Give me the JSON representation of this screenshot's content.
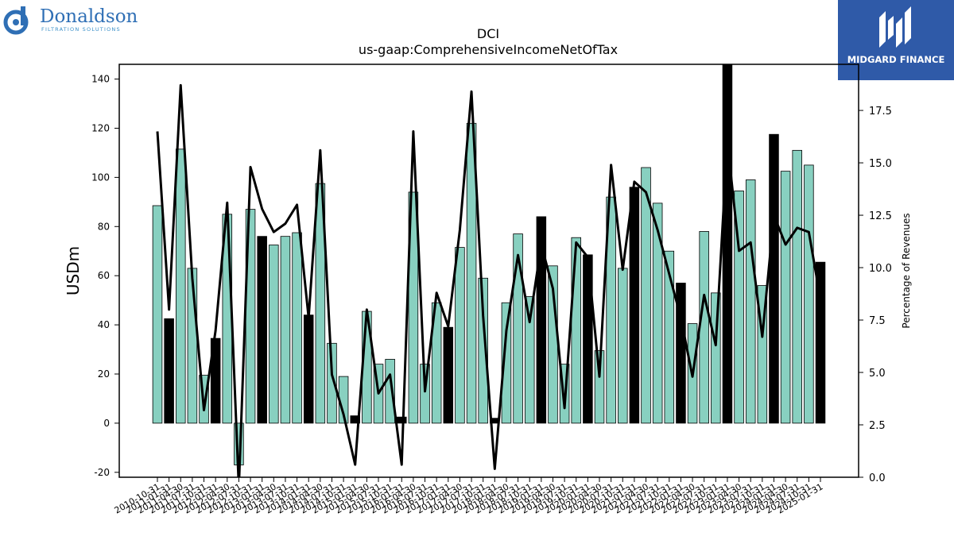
{
  "logos": {
    "left_brand": "Donaldson",
    "left_sub": "FILTRATION SOLUTIONS",
    "right_brand": "MIDGARD FINANCE"
  },
  "chart_data": {
    "type": "bar",
    "title": "DCI",
    "subtitle": "us-gaap:ComprehensiveIncomeNetOfTax",
    "ylabel": "USDm",
    "y2label": "Percentage of Revenues",
    "ylim": [
      -22,
      146
    ],
    "y2lim": [
      0,
      19.7
    ],
    "yticks": [
      -20,
      0,
      20,
      40,
      60,
      80,
      100,
      120,
      140
    ],
    "y2ticks": [
      "0.0",
      "2.5",
      "5.0",
      "7.5",
      "10.0",
      "12.5",
      "15.0",
      "17.5"
    ],
    "categories": [
      "2010-10-31",
      "2011-01-31",
      "2011-04-30",
      "2011-07-31",
      "2011-10-31",
      "2012-01-31",
      "2012-04-30",
      "2012-07-31",
      "2012-10-31",
      "2013-01-31",
      "2013-04-30",
      "2013-07-31",
      "2013-10-31",
      "2014-01-31",
      "2014-04-30",
      "2014-07-31",
      "2014-10-31",
      "2015-01-31",
      "2015-04-30",
      "2015-07-31",
      "2015-10-31",
      "2016-01-31",
      "2016-04-30",
      "2016-07-31",
      "2016-10-31",
      "2017-01-31",
      "2017-04-30",
      "2017-07-31",
      "2017-10-31",
      "2018-01-31",
      "2018-04-30",
      "2018-07-31",
      "2018-10-31",
      "2019-01-31",
      "2019-04-30",
      "2019-07-31",
      "2019-10-31",
      "2020-01-31",
      "2020-04-30",
      "2020-07-31",
      "2020-10-31",
      "2021-01-31",
      "2021-04-30",
      "2021-07-31",
      "2021-10-31",
      "2022-01-31",
      "2022-04-30",
      "2022-07-31",
      "2022-10-31",
      "2023-01-31",
      "2023-04-30",
      "2023-07-31",
      "2023-10-31",
      "2024-01-31",
      "2024-04-30",
      "2024-07-31",
      "2024-10-31",
      "2025-01-31"
    ],
    "xtick_labels": [
      "2010-10-31",
      "2011-01-31",
      "2011-04-30",
      "2011-07-31",
      "2011-10-31",
      "2012-01-31",
      "2012-04-30",
      "2012-07-31",
      "2012-10-31",
      "2013-01-31",
      "2013-04-30",
      "2013-07-31",
      "2013-10-31",
      "2014-01-31",
      "2014-04-30",
      "2014-07-31",
      "2014-10-31",
      "2015-01-31",
      "2015-04-30",
      "2015-07-31",
      "2015-10-31",
      "2016-01-31",
      "2016-04-30",
      "2016-07-31",
      "2016-10-31",
      "2017-01-31",
      "2017-04-30",
      "2017-07-31",
      "2017-10-31",
      "2018-01-31",
      "2018-04-30",
      "2018-07-31",
      "2018-10-31",
      "2019-01-31",
      "2019-04-30",
      "2019-07-31",
      "2019-10-31",
      "2020-01-31",
      "2020-04-30",
      "2020-07-31",
      "2020-10-31",
      "2021-01-31",
      "2021-04-30",
      "2021-07-31",
      "2021-10-31",
      "2022-01-31",
      "2022-04-30",
      "2022-07-31",
      "2022-10-31",
      "2023-01-31",
      "2023-04-30",
      "2023-07-31",
      "2023-10-31",
      "2024-01-31",
      "2024-04-30",
      "2024-07-31",
      "2024-10-31",
      "2025-01-31"
    ],
    "series": [
      {
        "values": [
          88.5,
          42.5,
          111.5,
          63,
          19.5,
          34.5,
          85,
          -17,
          87,
          76,
          72.5,
          76,
          77.5,
          44,
          97.5,
          32.5,
          19,
          3,
          45.5,
          24,
          26,
          2.5,
          94,
          24,
          49,
          39,
          71.5,
          122,
          59,
          2,
          49,
          77,
          51.5,
          84,
          64,
          24,
          75.5,
          68.5,
          29.5,
          92,
          63,
          96,
          104,
          89.5,
          70,
          57,
          40.5,
          78,
          53,
          146,
          94.5,
          99,
          56,
          117.5,
          102.5,
          111,
          105,
          65.5
        ],
        "bar_type": [
          "teal",
          "black",
          "teal",
          "teal",
          "teal",
          "black",
          "teal",
          "teal",
          "teal",
          "black",
          "teal",
          "teal",
          "teal",
          "black",
          "teal",
          "teal",
          "teal",
          "black",
          "teal",
          "teal",
          "teal",
          "black",
          "teal",
          "teal",
          "teal",
          "black",
          "teal",
          "teal",
          "teal",
          "black",
          "teal",
          "teal",
          "teal",
          "black",
          "teal",
          "teal",
          "teal",
          "black",
          "teal",
          "teal",
          "teal",
          "black",
          "teal",
          "teal",
          "teal",
          "black",
          "teal",
          "teal",
          "teal",
          "black",
          "teal",
          "teal",
          "teal",
          "black",
          "teal",
          "teal",
          "teal",
          "black"
        ]
      },
      {
        "axis": "right",
        "type": "line",
        "values": [
          16.5,
          8.0,
          18.7,
          9.5,
          3.2,
          7.0,
          13.1,
          -0.5,
          14.8,
          12.8,
          11.7,
          12.1,
          13.0,
          7.6,
          15.6,
          4.9,
          3.0,
          0.6,
          8.0,
          4.0,
          4.9,
          0.6,
          16.5,
          4.1,
          8.8,
          7.2,
          11.8,
          18.4,
          7.7,
          0.4,
          7.0,
          10.6,
          7.4,
          11.1,
          9.0,
          3.3,
          11.2,
          10.5,
          4.8,
          14.9,
          9.9,
          14.1,
          13.6,
          11.8,
          9.7,
          7.6,
          4.8,
          8.7,
          6.3,
          16.0,
          10.8,
          11.2,
          6.7,
          12.5,
          11.1,
          11.9,
          11.7,
          8.5
        ]
      }
    ],
    "colors": {
      "teal": "#88d0c0",
      "black": "#000000",
      "line": "#000000"
    },
    "grid": false,
    "legend": "none"
  }
}
